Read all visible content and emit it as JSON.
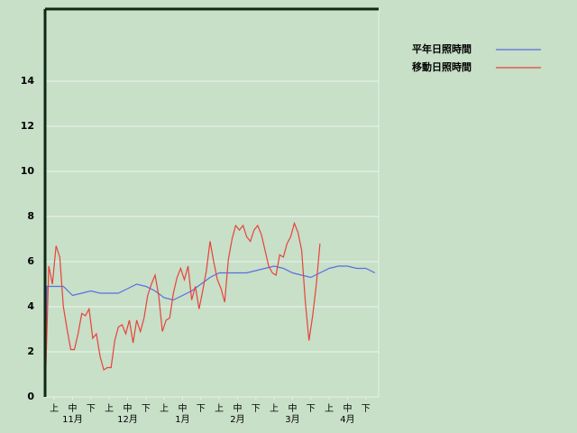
{
  "chart_data": {
    "type": "line",
    "xlim": [
      0,
      182
    ],
    "ylim": [
      0,
      17.2
    ],
    "yticks": [
      0,
      2,
      4,
      6,
      8,
      10,
      12,
      14
    ],
    "xticks": [
      {
        "value": 5,
        "label": "上"
      },
      {
        "value": 15,
        "label": "中"
      },
      {
        "value": 25,
        "label": "下"
      },
      {
        "value": 35,
        "label": "上"
      },
      {
        "value": 45,
        "label": "中"
      },
      {
        "value": 55,
        "label": "下"
      },
      {
        "value": 65,
        "label": "上"
      },
      {
        "value": 75,
        "label": "中"
      },
      {
        "value": 85,
        "label": "下"
      },
      {
        "value": 95,
        "label": "上"
      },
      {
        "value": 105,
        "label": "中"
      },
      {
        "value": 115,
        "label": "下"
      },
      {
        "value": 125,
        "label": "上"
      },
      {
        "value": 135,
        "label": "中"
      },
      {
        "value": 145,
        "label": "下"
      },
      {
        "value": 155,
        "label": "上"
      },
      {
        "value": 165,
        "label": "中"
      },
      {
        "value": 175,
        "label": "下"
      }
    ],
    "month_ticks": [
      {
        "value": 15,
        "label": "11月"
      },
      {
        "value": 45,
        "label": "12月"
      },
      {
        "value": 75,
        "label": "1月"
      },
      {
        "value": 105,
        "label": "2月"
      },
      {
        "value": 135,
        "label": "3月"
      },
      {
        "value": 165,
        "label": "4月"
      }
    ],
    "grid": true,
    "legend": "right",
    "series": [
      {
        "name": "平年日照時間",
        "color": "#5a6ee0",
        "x": [
          0,
          1,
          5,
          10,
          15,
          20,
          25,
          30,
          35,
          40,
          45,
          50,
          55,
          60,
          65,
          70,
          75,
          80,
          85,
          90,
          95,
          100,
          105,
          110,
          115,
          120,
          125,
          130,
          135,
          140,
          145,
          150,
          155,
          160,
          165,
          170,
          175,
          180
        ],
        "values": [
          0,
          4.9,
          4.9,
          4.9,
          4.5,
          4.6,
          4.7,
          4.6,
          4.6,
          4.6,
          4.8,
          5.0,
          4.9,
          4.7,
          4.4,
          4.3,
          4.5,
          4.7,
          5.0,
          5.3,
          5.5,
          5.5,
          5.5,
          5.5,
          5.6,
          5.7,
          5.8,
          5.7,
          5.5,
          5.4,
          5.3,
          5.5,
          5.7,
          5.8,
          5.8,
          5.7,
          5.7,
          5.5
        ]
      },
      {
        "name": "移動日照時間",
        "color": "#e8423a",
        "x": [
          0,
          2,
          4,
          6,
          8,
          10,
          12,
          14,
          16,
          18,
          20,
          22,
          24,
          26,
          28,
          30,
          32,
          34,
          36,
          38,
          40,
          42,
          44,
          46,
          48,
          50,
          52,
          54,
          56,
          58,
          60,
          62,
          64,
          66,
          68,
          70,
          72,
          74,
          76,
          78,
          80,
          82,
          84,
          86,
          88,
          90,
          92,
          94,
          96,
          98,
          100,
          102,
          104,
          106,
          108,
          110,
          112,
          114,
          116,
          118,
          120,
          122,
          124,
          126,
          128,
          130,
          132,
          134,
          136,
          138,
          140,
          142,
          144,
          146,
          148,
          150
        ],
        "values": [
          0,
          5.8,
          5.0,
          6.7,
          6.2,
          4.0,
          3.0,
          2.1,
          2.1,
          2.8,
          3.7,
          3.6,
          3.9,
          2.6,
          2.8,
          1.8,
          1.2,
          1.3,
          1.3,
          2.5,
          3.1,
          3.2,
          2.8,
          3.4,
          2.4,
          3.4,
          2.9,
          3.5,
          4.5,
          5.0,
          5.4,
          4.5,
          2.9,
          3.4,
          3.5,
          4.6,
          5.3,
          5.7,
          5.2,
          5.8,
          4.3,
          4.9,
          3.9,
          4.7,
          5.6,
          6.9,
          6.0,
          5.2,
          4.8,
          4.2,
          6.1,
          7.0,
          7.6,
          7.4,
          7.6,
          7.1,
          6.9,
          7.4,
          7.6,
          7.2,
          6.5,
          5.8,
          5.5,
          5.4,
          6.3,
          6.2,
          6.8,
          7.1,
          7.7,
          7.3,
          6.5,
          4.2,
          2.5,
          3.6,
          5.0,
          6.8
        ]
      }
    ]
  }
}
